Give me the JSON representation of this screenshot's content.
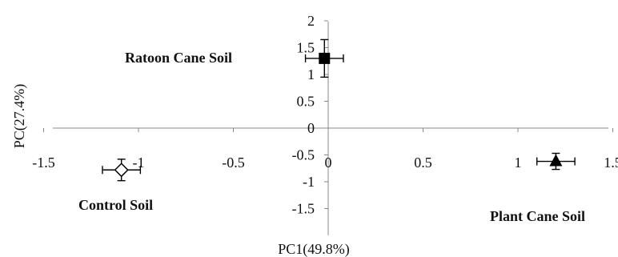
{
  "chart_data": {
    "type": "scatter",
    "title": "",
    "xlabel": "PC1(49.8%)",
    "ylabel": "PC(27.4%)",
    "xlim": [
      -1.5,
      1.5
    ],
    "ylim": [
      -1.5,
      2
    ],
    "x_ticks": [
      -1.5,
      -1,
      -0.5,
      0,
      0.5,
      1,
      1.5
    ],
    "x_tick_labels": [
      "-1.5",
      "-1",
      "-0.5",
      "0",
      "0.5",
      "1",
      "1.5"
    ],
    "y_ticks": [
      -1.5,
      -1,
      -0.5,
      0,
      0.5,
      1,
      1.5,
      2
    ],
    "y_tick_labels": [
      "-1.5",
      "-1",
      "-0.5",
      "0",
      "0.5",
      "1",
      "1.5",
      "2"
    ],
    "grid": false,
    "points": [
      {
        "label": "Ratoon Cane Soil",
        "x": -0.02,
        "y": 1.3,
        "x_err": 0.1,
        "y_err": 0.35,
        "marker": "square-filled"
      },
      {
        "label": "Control Soil",
        "x": -1.09,
        "y": -0.78,
        "x_err": 0.1,
        "y_err": 0.2,
        "marker": "diamond-open"
      },
      {
        "label": "Plant Cane Soil",
        "x": 1.2,
        "y": -0.62,
        "x_err": 0.1,
        "y_err": 0.15,
        "marker": "triangle-filled"
      }
    ]
  }
}
